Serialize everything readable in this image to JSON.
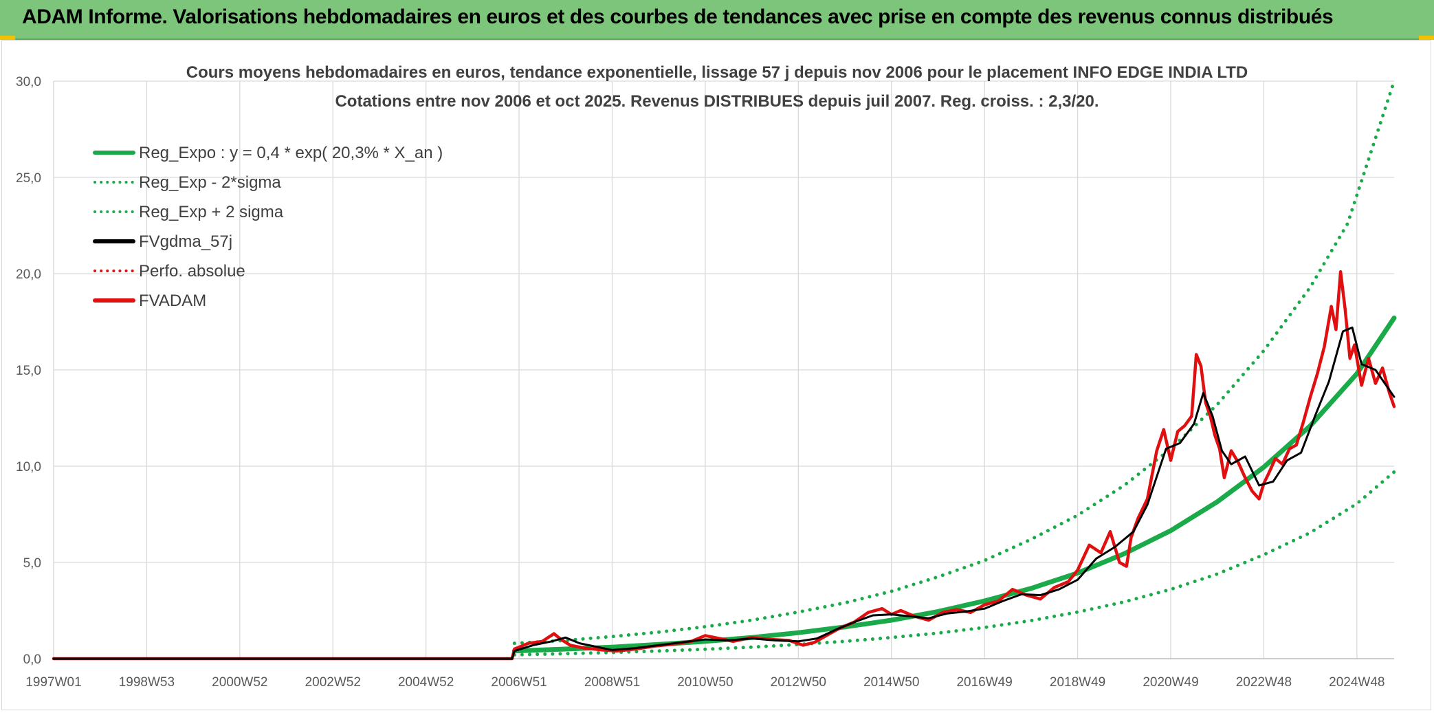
{
  "banner": {
    "title": "ADAM Informe. Valorisations hebdomadaires en euros et des courbes de tendances avec prise en compte des revenus connus distribués"
  },
  "chart_data": {
    "type": "line",
    "title": "Cours moyens hebdomadaires en euros, tendance exponentielle, lissage 57 j depuis nov 2006 pour le placement INFO EDGE INDIA LTD",
    "subtitle": "Cotations entre nov 2006 et oct 2025. Revenus DISTRIBUES depuis juil 2007. Reg. croiss. : 2,3/20.",
    "xlabel": "",
    "ylabel": "",
    "x_range": [
      1997.0,
      2025.8
    ],
    "ylim": [
      0,
      30
    ],
    "y_ticks": [
      "0,0",
      "5,0",
      "10,0",
      "15,0",
      "20,0",
      "25,0",
      "30,0"
    ],
    "y_tick_values": [
      0,
      5,
      10,
      15,
      20,
      25,
      30
    ],
    "x_ticks": [
      "1997W01",
      "1998W53",
      "2000W52",
      "2002W52",
      "2004W52",
      "2006W51",
      "2008W51",
      "2010W50",
      "2012W50",
      "2014W50",
      "2016W49",
      "2018W49",
      "2020W49",
      "2022W48",
      "2024W48"
    ],
    "x_tick_years": [
      1997.0,
      1999.0,
      2001.0,
      2003.0,
      2005.0,
      2007.0,
      2009.0,
      2011.0,
      2013.0,
      2015.0,
      2017.0,
      2019.0,
      2021.0,
      2023.0,
      2025.0
    ],
    "grid": true,
    "legend_position": "top-left",
    "legend": [
      {
        "label": "Reg_Expo : y = 0,4 * exp( 20,3% *  X_an )",
        "color": "#1aaa4a",
        "style": "solid"
      },
      {
        "label": "Reg_Exp - 2*sigma",
        "color": "#1aaa4a",
        "style": "dotted"
      },
      {
        "label": "Reg_Exp + 2 sigma",
        "color": "#1aaa4a",
        "style": "dotted"
      },
      {
        "label": "FVgdma_57j",
        "color": "#000000",
        "style": "solid"
      },
      {
        "label": "Perfo. absolue",
        "color": "#e01010",
        "style": "dotted"
      },
      {
        "label": "FVADAM",
        "color": "#e01010",
        "style": "solid"
      }
    ],
    "series": [
      {
        "name": "Reg_Expo : y = 0,4 * exp( 20,3% *  X_an )",
        "x": [
          2006.9,
          2008.0,
          2009.0,
          2010.0,
          2011.0,
          2012.0,
          2013.0,
          2014.0,
          2015.0,
          2016.0,
          2017.0,
          2018.0,
          2019.0,
          2020.0,
          2021.0,
          2022.0,
          2023.0,
          2024.0,
          2025.0,
          2025.8
        ],
        "values": [
          0.4,
          0.5,
          0.6,
          0.74,
          0.9,
          1.1,
          1.35,
          1.65,
          2.0,
          2.45,
          3.0,
          3.65,
          4.45,
          5.45,
          6.65,
          8.15,
          9.95,
          12.1,
          14.8,
          17.7
        ]
      },
      {
        "name": "Reg_Exp - 2*sigma",
        "x": [
          2006.9,
          2008.0,
          2009.0,
          2010.0,
          2011.0,
          2012.0,
          2013.0,
          2014.0,
          2015.0,
          2016.0,
          2017.0,
          2018.0,
          2019.0,
          2020.0,
          2021.0,
          2022.0,
          2023.0,
          2024.0,
          2025.0,
          2025.8
        ],
        "values": [
          0.2,
          0.26,
          0.32,
          0.4,
          0.49,
          0.6,
          0.74,
          0.9,
          1.1,
          1.33,
          1.62,
          1.98,
          2.42,
          2.95,
          3.6,
          4.4,
          5.4,
          6.55,
          8.05,
          9.7
        ]
      },
      {
        "name": "Reg_Exp + 2 sigma",
        "x": [
          2006.9,
          2008.0,
          2009.0,
          2010.0,
          2011.0,
          2012.0,
          2013.0,
          2014.0,
          2015.0,
          2016.0,
          2017.0,
          2018.0,
          2019.0,
          2020.0,
          2021.0,
          2022.0,
          2023.0,
          2024.0,
          2024.8,
          2025.8
        ],
        "values": [
          0.8,
          0.95,
          1.15,
          1.38,
          1.66,
          2.0,
          2.42,
          2.9,
          3.5,
          4.25,
          5.1,
          6.2,
          7.45,
          9.0,
          10.9,
          13.2,
          16.0,
          19.3,
          22.6,
          30.0
        ]
      },
      {
        "name": "FVgdma_57j",
        "x": [
          1997.0,
          2006.85,
          2006.9,
          2007.3,
          2007.7,
          2008.0,
          2008.3,
          2008.7,
          2009.0,
          2009.5,
          2010.0,
          2010.5,
          2011.0,
          2011.5,
          2012.0,
          2012.5,
          2013.0,
          2013.4,
          2013.8,
          2014.2,
          2014.6,
          2015.0,
          2015.4,
          2015.8,
          2016.2,
          2016.6,
          2017.0,
          2017.4,
          2017.8,
          2018.2,
          2018.6,
          2019.0,
          2019.4,
          2019.8,
          2020.2,
          2020.5,
          2020.9,
          2021.2,
          2021.5,
          2021.7,
          2021.9,
          2022.1,
          2022.3,
          2022.6,
          2022.9,
          2023.2,
          2023.5,
          2023.8,
          2024.1,
          2024.4,
          2024.7,
          2024.9,
          2025.1,
          2025.4,
          2025.8
        ],
        "values": [
          0.0,
          0.0,
          0.4,
          0.7,
          0.9,
          1.1,
          0.8,
          0.6,
          0.45,
          0.55,
          0.7,
          0.85,
          1.0,
          0.95,
          1.05,
          0.95,
          0.9,
          1.05,
          1.5,
          1.9,
          2.25,
          2.3,
          2.2,
          2.1,
          2.35,
          2.45,
          2.6,
          3.0,
          3.35,
          3.3,
          3.6,
          4.1,
          5.2,
          5.8,
          6.6,
          8.0,
          10.9,
          11.2,
          12.2,
          13.8,
          12.6,
          10.8,
          10.1,
          10.5,
          9.0,
          9.2,
          10.3,
          10.7,
          12.6,
          14.4,
          17.0,
          17.2,
          15.3,
          15.0,
          13.6
        ]
      },
      {
        "name": "FVADAM",
        "x": [
          1997.0,
          2006.85,
          2006.9,
          2007.2,
          2007.5,
          2007.75,
          2007.9,
          2008.1,
          2008.4,
          2008.8,
          2009.1,
          2009.5,
          2009.9,
          2010.3,
          2010.7,
          2011.0,
          2011.3,
          2011.6,
          2012.0,
          2012.4,
          2012.8,
          2013.1,
          2013.35,
          2013.6,
          2013.9,
          2014.2,
          2014.5,
          2014.8,
          2015.0,
          2015.2,
          2015.5,
          2015.8,
          2016.1,
          2016.4,
          2016.7,
          2017.0,
          2017.3,
          2017.6,
          2017.9,
          2018.2,
          2018.5,
          2018.8,
          2019.0,
          2019.25,
          2019.5,
          2019.7,
          2019.9,
          2020.05,
          2020.15,
          2020.3,
          2020.5,
          2020.7,
          2020.85,
          2021.0,
          2021.15,
          2021.3,
          2021.45,
          2021.55,
          2021.65,
          2021.75,
          2021.85,
          2021.95,
          2022.05,
          2022.15,
          2022.3,
          2022.45,
          2022.6,
          2022.75,
          2022.9,
          2023.0,
          2023.1,
          2023.25,
          2023.4,
          2023.55,
          2023.7,
          2023.85,
          2024.0,
          2024.15,
          2024.3,
          2024.45,
          2024.55,
          2024.65,
          2024.75,
          2024.85,
          2024.95,
          2025.1,
          2025.25,
          2025.4,
          2025.55,
          2025.7,
          2025.8
        ],
        "values": [
          0.0,
          0.0,
          0.5,
          0.8,
          0.9,
          1.3,
          1.0,
          0.7,
          0.55,
          0.45,
          0.4,
          0.5,
          0.65,
          0.75,
          0.9,
          1.2,
          1.05,
          0.9,
          1.1,
          1.0,
          0.95,
          0.7,
          0.85,
          1.2,
          1.6,
          1.9,
          2.4,
          2.6,
          2.3,
          2.5,
          2.2,
          2.0,
          2.4,
          2.55,
          2.4,
          2.8,
          3.0,
          3.6,
          3.3,
          3.1,
          3.7,
          4.0,
          4.6,
          5.9,
          5.5,
          6.6,
          5.0,
          4.8,
          6.3,
          7.3,
          8.3,
          10.8,
          11.9,
          10.3,
          11.8,
          12.1,
          12.6,
          15.8,
          15.2,
          13.3,
          12.6,
          11.6,
          10.9,
          9.4,
          10.8,
          10.2,
          9.4,
          8.7,
          8.3,
          9.1,
          9.6,
          10.4,
          10.1,
          10.9,
          11.1,
          12.3,
          13.6,
          14.8,
          16.2,
          18.3,
          17.1,
          20.1,
          18.1,
          15.6,
          16.3,
          14.2,
          15.6,
          14.3,
          15.1,
          13.8,
          13.1
        ]
      }
    ]
  }
}
